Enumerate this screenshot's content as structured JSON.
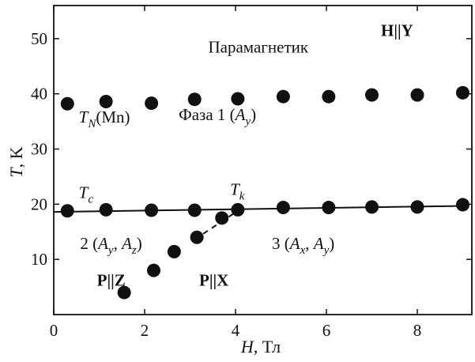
{
  "chart_data": {
    "type": "scatter",
    "xlabel": {
      "var": "H",
      "unit": ", Тл"
    },
    "ylabel": {
      "var": "T",
      "unit": ", K"
    },
    "xlim": [
      0,
      9.2
    ],
    "ylim": [
      0,
      56
    ],
    "x_ticks": [
      0,
      2,
      4,
      6,
      8
    ],
    "y_ticks": [
      10,
      20,
      30,
      40,
      50
    ],
    "grid": false,
    "series": [
      {
        "key": "tn",
        "marker": "filled-circle",
        "points": [
          [
            0.3,
            38.2
          ],
          [
            1.15,
            38.6
          ],
          [
            2.15,
            38.3
          ],
          [
            3.1,
            39.0
          ],
          [
            4.05,
            39.1
          ],
          [
            5.05,
            39.5
          ],
          [
            6.05,
            39.5
          ],
          [
            7.0,
            39.8
          ],
          [
            8.0,
            39.8
          ],
          [
            9.0,
            40.2
          ]
        ]
      },
      {
        "key": "tc",
        "marker": "filled-circle",
        "points": [
          [
            0.3,
            18.8
          ],
          [
            1.15,
            19.0
          ],
          [
            2.15,
            18.9
          ],
          [
            3.1,
            18.9
          ],
          [
            4.05,
            19.0
          ],
          [
            5.05,
            19.4
          ],
          [
            6.05,
            19.4
          ],
          [
            7.0,
            19.5
          ],
          [
            8.0,
            19.5
          ],
          [
            9.0,
            19.9
          ]
        ]
      },
      {
        "key": "px",
        "marker": "filled-circle",
        "points": [
          [
            1.55,
            4.0
          ],
          [
            2.2,
            8.0
          ],
          [
            2.65,
            11.4
          ],
          [
            3.15,
            14.0
          ],
          [
            3.7,
            17.5
          ]
        ]
      }
    ],
    "fit_line": {
      "from": [
        0.0,
        18.6
      ],
      "to": [
        9.1,
        19.7
      ]
    },
    "dashed_segment": {
      "from": [
        3.1,
        13.6
      ],
      "to": [
        4.05,
        18.8
      ]
    },
    "annotations": [
      {
        "id": "paramagnet",
        "parts": [
          {
            "t": "Парамагнетик"
          }
        ],
        "x": 3.4,
        "y": 47.5,
        "bold": false
      },
      {
        "id": "h-y",
        "parts": [
          {
            "t": "H"
          },
          {
            "t": "||"
          },
          {
            "t": "Y"
          }
        ],
        "x": 7.2,
        "y": 50.5,
        "bold": true
      },
      {
        "id": "tn-mn",
        "parts": [
          {
            "t": "T",
            "it": true
          },
          {
            "t": "N",
            "it": true,
            "sub": true
          },
          {
            "t": "(Mn)"
          }
        ],
        "x": 0.55,
        "y": 34.8,
        "bold": false
      },
      {
        "id": "phase1",
        "parts": [
          {
            "t": "Фаза 1 ("
          },
          {
            "t": "A",
            "it": true
          },
          {
            "t": "y",
            "it": true,
            "sub": true
          },
          {
            "t": ")"
          }
        ],
        "x": 2.75,
        "y": 35.2,
        "bold": false
      },
      {
        "id": "tc-label",
        "parts": [
          {
            "t": "T",
            "it": true
          },
          {
            "t": "c",
            "it": true,
            "sub": true
          }
        ],
        "x": 0.55,
        "y": 21.1,
        "bold": false
      },
      {
        "id": "tk-label",
        "parts": [
          {
            "t": "T",
            "it": true
          },
          {
            "t": "k",
            "it": true,
            "sub": true
          }
        ],
        "x": 3.88,
        "y": 21.7,
        "bold": false
      },
      {
        "id": "phase2",
        "parts": [
          {
            "t": "2 ("
          },
          {
            "t": "A",
            "it": true
          },
          {
            "t": "y",
            "it": true,
            "sub": true
          },
          {
            "t": ", "
          },
          {
            "t": "A",
            "it": true
          },
          {
            "t": "z",
            "it": true,
            "sub": true
          },
          {
            "t": ")"
          }
        ],
        "x": 0.58,
        "y": 11.9,
        "bold": false
      },
      {
        "id": "phase3",
        "parts": [
          {
            "t": "3 ("
          },
          {
            "t": "A",
            "it": true
          },
          {
            "t": "x",
            "it": true,
            "sub": true
          },
          {
            "t": ", "
          },
          {
            "t": "A",
            "it": true
          },
          {
            "t": "y",
            "it": true,
            "sub": true
          },
          {
            "t": ")"
          }
        ],
        "x": 4.8,
        "y": 11.9,
        "bold": false
      },
      {
        "id": "p-z",
        "parts": [
          {
            "t": "P"
          },
          {
            "t": "||"
          },
          {
            "t": "Z"
          }
        ],
        "x": 0.95,
        "y": 5.2,
        "bold": true
      },
      {
        "id": "p-x",
        "parts": [
          {
            "t": "P"
          },
          {
            "t": "||"
          },
          {
            "t": "X"
          }
        ],
        "x": 3.2,
        "y": 5.2,
        "bold": true
      }
    ]
  }
}
